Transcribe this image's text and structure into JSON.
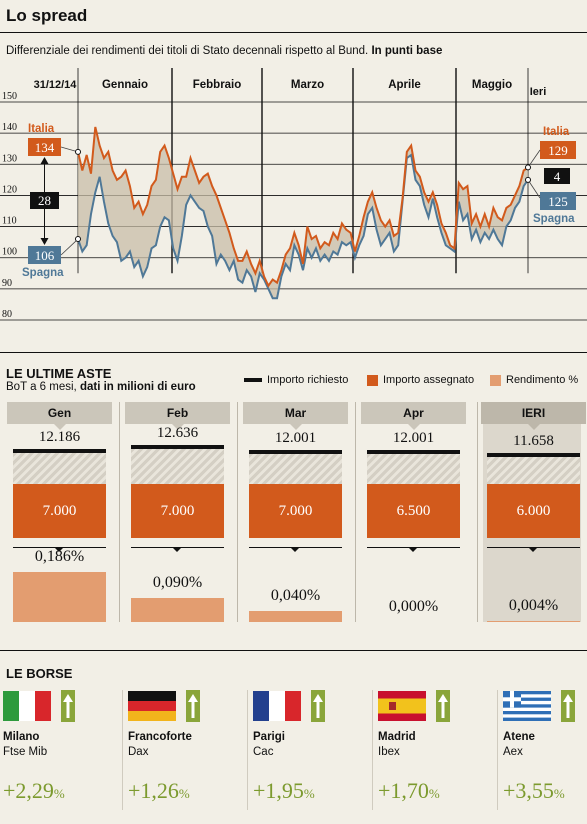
{
  "title": "Lo spread",
  "subtitle": "Differenziale dei rendimenti dei titoli di Stato decennali rispetto al Bund.",
  "subtitle_bold": "In punti base",
  "chart_data": {
    "type": "line",
    "y_ticks": [
      "150",
      "140",
      "130",
      "120",
      "110",
      "100",
      "90",
      "80"
    ],
    "ylim": [
      80,
      150
    ],
    "months": [
      "Gennaio",
      "Febbraio",
      "Marzo",
      "Aprile",
      "Maggio"
    ],
    "start_date_label": "31/12/14",
    "end_date_label": "Ieri",
    "series": [
      {
        "name": "Italia",
        "color": "#d25a1c",
        "values": [
          134,
          128,
          133,
          127,
          142,
          136,
          132,
          134,
          128,
          125,
          126,
          128,
          123,
          116,
          118,
          114,
          117,
          123,
          125,
          134,
          136,
          132,
          127,
          122,
          126,
          126,
          132,
          128,
          124,
          126,
          127,
          123,
          120,
          116,
          112,
          108,
          103,
          99,
          99,
          102,
          98,
          95,
          99,
          94,
          91,
          93,
          92,
          96,
          101,
          103,
          108,
          104,
          98,
          110,
          106,
          107,
          103,
          105,
          104,
          108,
          106,
          111,
          109,
          108,
          102,
          107,
          113,
          118,
          121,
          116,
          112,
          110,
          112,
          107,
          108,
          119,
          134,
          136,
          128,
          126,
          121,
          118,
          121,
          117,
          111,
          108,
          104,
          103,
          124,
          122,
          123,
          111,
          114,
          110,
          114,
          110,
          116,
          113,
          112,
          116,
          117,
          120,
          123,
          128,
          129
        ]
      },
      {
        "name": "Spagna",
        "color": "#4f7897",
        "values": [
          106,
          102,
          104,
          114,
          121,
          126,
          118,
          111,
          107,
          105,
          99,
          100,
          102,
          97,
          99,
          94,
          97,
          103,
          104,
          110,
          113,
          112,
          103,
          99,
          107,
          117,
          120,
          118,
          116,
          115,
          110,
          107,
          98,
          101,
          99,
          96,
          99,
          93,
          92,
          96,
          94,
          89,
          95,
          93,
          90,
          87,
          87,
          94,
          98,
          96,
          104,
          101,
          96,
          103,
          100,
          103,
          99,
          101,
          99,
          102,
          101,
          105,
          104,
          105,
          100,
          104,
          107,
          114,
          116,
          109,
          104,
          106,
          108,
          102,
          104,
          118,
          132,
          133,
          125,
          123,
          117,
          113,
          119,
          113,
          108,
          104,
          103,
          102,
          118,
          112,
          114,
          106,
          109,
          105,
          108,
          106,
          109,
          106,
          104,
          110,
          112,
          116,
          118,
          123,
          125
        ]
      }
    ],
    "labels": {
      "italia_top": "Italia",
      "italia_start": "134",
      "spagna_start": "106",
      "spagna_bottom": "Spagna",
      "diff_start": "28",
      "italia_end": "129",
      "diff_end": "4",
      "spagna_end": "125"
    }
  },
  "aste": {
    "title": "LE ULTIME ASTE",
    "subtitle": "BoT a 6 mesi,",
    "subtitle_bold": "dati in milioni di euro",
    "legend": {
      "richiesto": "Importo richiesto",
      "assegnato": "Importo assegnato",
      "rendimento": "Rendimento %"
    },
    "columns": [
      {
        "label": "Gen",
        "richiesto": "12.186",
        "assegnato": "7.000",
        "rendimento": "0,186%",
        "richiesto_num": 12186,
        "rendimento_num": 0.186
      },
      {
        "label": "Feb",
        "richiesto": "12.636",
        "assegnato": "7.000",
        "rendimento": "0,090%",
        "richiesto_num": 12636,
        "rendimento_num": 0.09
      },
      {
        "label": "Mar",
        "richiesto": "12.001",
        "assegnato": "7.000",
        "rendimento": "0,040%",
        "richiesto_num": 12001,
        "rendimento_num": 0.04
      },
      {
        "label": "Apr",
        "richiesto": "12.001",
        "assegnato": "6.500",
        "rendimento": "0,000%",
        "richiesto_num": 12001,
        "rendimento_num": 0.0
      },
      {
        "label": "IERI",
        "richiesto": "11.658",
        "assegnato": "6.000",
        "rendimento": "0,004%",
        "richiesto_num": 11658,
        "rendimento_num": 0.004
      }
    ]
  },
  "borse": {
    "title": "LE BORSE",
    "items": [
      {
        "city": "Milano",
        "index": "Ftse Mib",
        "change": "+2,29",
        "pct": "%",
        "flag": "italy-flag"
      },
      {
        "city": "Francoforte",
        "index": "Dax",
        "change": "+1,26",
        "pct": "%",
        "flag": "germany-flag"
      },
      {
        "city": "Parigi",
        "index": "Cac",
        "change": "+1,95",
        "pct": "%",
        "flag": "france-flag"
      },
      {
        "city": "Madrid",
        "index": "Ibex",
        "change": "+1,70",
        "pct": "%",
        "flag": "spain-flag"
      },
      {
        "city": "Atene",
        "index": "Aex",
        "change": "+3,55",
        "pct": "%",
        "flag": "greece-flag"
      }
    ]
  }
}
